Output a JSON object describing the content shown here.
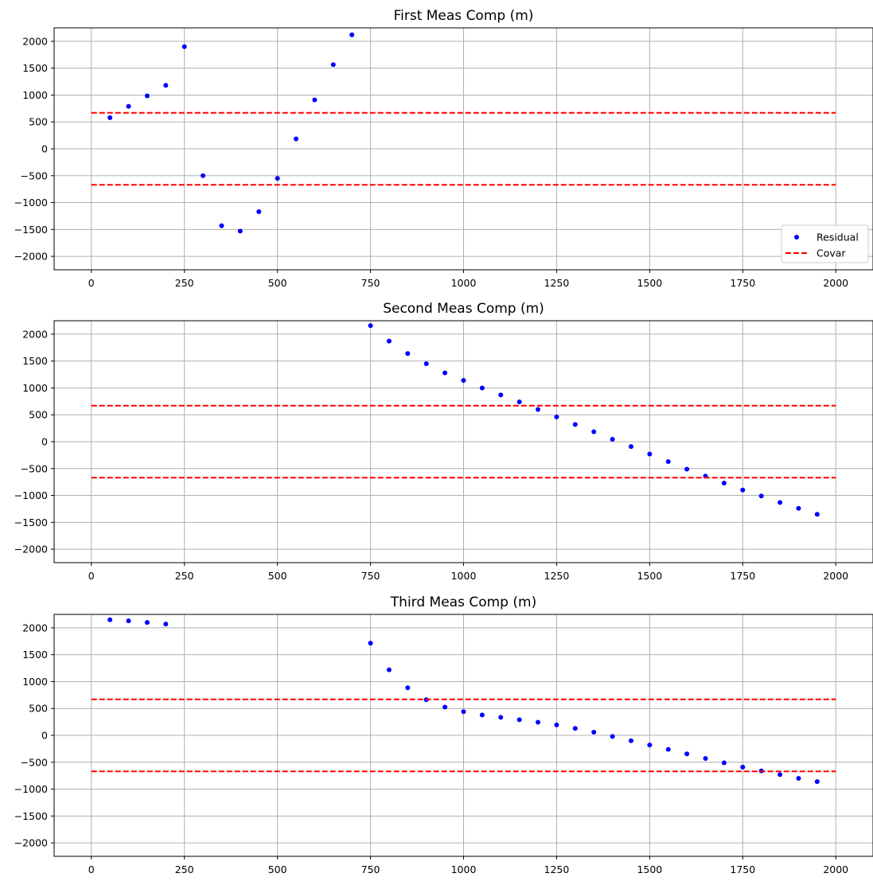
{
  "chart_data": [
    {
      "type": "scatter",
      "title": "First Meas Comp (m)",
      "xlabel": "",
      "ylabel": "",
      "xlim": [
        -100,
        2100
      ],
      "ylim": [
        -2250,
        2250
      ],
      "xticks": [
        0,
        250,
        500,
        750,
        1000,
        1250,
        1500,
        1750,
        2000
      ],
      "yticks": [
        -2000,
        -1500,
        -1000,
        -500,
        0,
        500,
        1000,
        1500,
        2000
      ],
      "grid": true,
      "legend": {
        "placement": "bottom-right",
        "entries": [
          {
            "label": "Residual",
            "marker": "point",
            "color": "#0000ff"
          },
          {
            "label": "Covar",
            "marker": "dashed-line",
            "color": "#ff0000"
          }
        ]
      },
      "series": [
        {
          "name": "Residual",
          "color": "#0000ff",
          "points": [
            [
              50,
              580
            ],
            [
              100,
              790
            ],
            [
              150,
              985
            ],
            [
              200,
              1180
            ],
            [
              250,
              1900
            ],
            [
              300,
              -500
            ],
            [
              350,
              -1430
            ],
            [
              400,
              -1530
            ],
            [
              450,
              -1170
            ],
            [
              500,
              -550
            ],
            [
              550,
              185
            ],
            [
              600,
              910
            ],
            [
              650,
              1565
            ],
            [
              700,
              2120
            ]
          ]
        },
        {
          "name": "Covar",
          "color": "#ff0000",
          "style": "dashed",
          "x_range": [
            0,
            2000
          ],
          "levels": [
            670,
            -670
          ]
        }
      ]
    },
    {
      "type": "scatter",
      "title": "Second Meas Comp (m)",
      "xlabel": "",
      "ylabel": "",
      "xlim": [
        -100,
        2100
      ],
      "ylim": [
        -2250,
        2250
      ],
      "xticks": [
        0,
        250,
        500,
        750,
        1000,
        1250,
        1500,
        1750,
        2000
      ],
      "yticks": [
        -2000,
        -1500,
        -1000,
        -500,
        0,
        500,
        1000,
        1500,
        2000
      ],
      "grid": true,
      "series": [
        {
          "name": "Residual",
          "color": "#0000ff",
          "points": [
            [
              750,
              2160
            ],
            [
              800,
              1870
            ],
            [
              850,
              1640
            ],
            [
              900,
              1450
            ],
            [
              950,
              1280
            ],
            [
              1000,
              1140
            ],
            [
              1050,
              1000
            ],
            [
              1100,
              870
            ],
            [
              1150,
              740
            ],
            [
              1200,
              600
            ],
            [
              1250,
              460
            ],
            [
              1300,
              320
            ],
            [
              1350,
              185
            ],
            [
              1400,
              45
            ],
            [
              1450,
              -90
            ],
            [
              1500,
              -230
            ],
            [
              1550,
              -370
            ],
            [
              1600,
              -510
            ],
            [
              1650,
              -640
            ],
            [
              1700,
              -770
            ],
            [
              1750,
              -900
            ],
            [
              1800,
              -1010
            ],
            [
              1850,
              -1130
            ],
            [
              1900,
              -1240
            ],
            [
              1950,
              -1350
            ]
          ]
        },
        {
          "name": "Covar",
          "color": "#ff0000",
          "style": "dashed",
          "x_range": [
            0,
            2000
          ],
          "levels": [
            670,
            -670
          ]
        }
      ]
    },
    {
      "type": "scatter",
      "title": "Third Meas Comp (m)",
      "xlabel": "",
      "ylabel": "",
      "xlim": [
        -100,
        2100
      ],
      "ylim": [
        -2250,
        2250
      ],
      "xticks": [
        0,
        250,
        500,
        750,
        1000,
        1250,
        1500,
        1750,
        2000
      ],
      "yticks": [
        -2000,
        -1500,
        -1000,
        -500,
        0,
        500,
        1000,
        1500,
        2000
      ],
      "grid": true,
      "series": [
        {
          "name": "Residual",
          "color": "#0000ff",
          "points": [
            [
              50,
              2150
            ],
            [
              100,
              2130
            ],
            [
              150,
              2100
            ],
            [
              200,
              2070
            ],
            [
              750,
              1715
            ],
            [
              800,
              1220
            ],
            [
              850,
              885
            ],
            [
              900,
              665
            ],
            [
              950,
              525
            ],
            [
              1000,
              440
            ],
            [
              1050,
              380
            ],
            [
              1100,
              335
            ],
            [
              1150,
              290
            ],
            [
              1200,
              245
            ],
            [
              1250,
              195
            ],
            [
              1300,
              130
            ],
            [
              1350,
              60
            ],
            [
              1400,
              -20
            ],
            [
              1450,
              -100
            ],
            [
              1500,
              -180
            ],
            [
              1550,
              -260
            ],
            [
              1600,
              -345
            ],
            [
              1650,
              -430
            ],
            [
              1700,
              -510
            ],
            [
              1750,
              -590
            ],
            [
              1800,
              -660
            ],
            [
              1850,
              -730
            ],
            [
              1900,
              -800
            ],
            [
              1950,
              -860
            ]
          ]
        },
        {
          "name": "Covar",
          "color": "#ff0000",
          "style": "dashed",
          "x_range": [
            0,
            2000
          ],
          "levels": [
            670,
            -670
          ]
        }
      ]
    }
  ]
}
